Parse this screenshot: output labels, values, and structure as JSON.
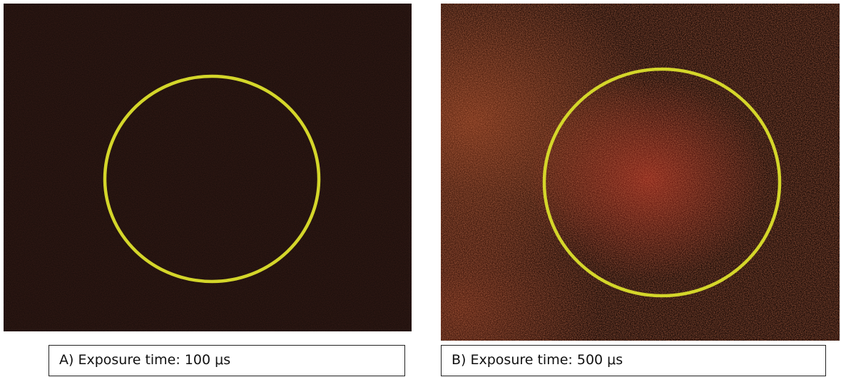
{
  "panels": [
    {
      "caption": "A) Exposure time: 100 μs"
    },
    {
      "caption": "B) Exposure time: 500 μs"
    }
  ]
}
